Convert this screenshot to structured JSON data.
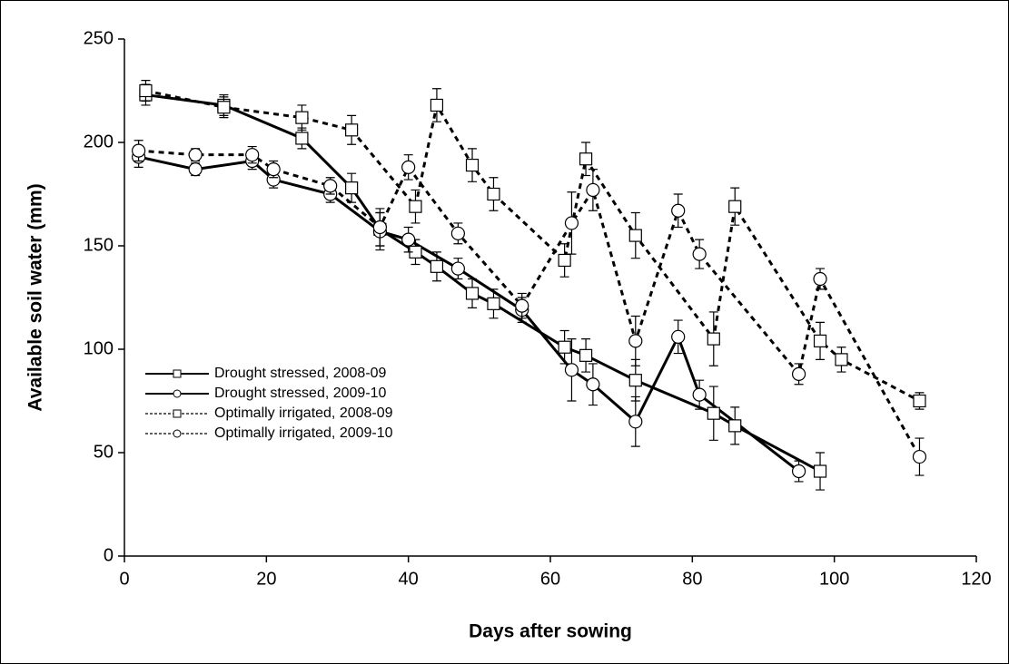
{
  "chart_data": {
    "type": "line",
    "x_label": "Days after sowing",
    "y_label": "Available soil water (mm)",
    "xlim": [
      0,
      120
    ],
    "xticks": [
      0,
      20,
      40,
      60,
      80,
      100,
      120
    ],
    "ylim": [
      0,
      250
    ],
    "yticks": [
      0,
      50,
      100,
      150,
      200,
      250
    ],
    "legend": "lower left",
    "series": [
      {
        "name": "Drought stressed, 2008-09",
        "color": "#000000",
        "line_style": "solid",
        "marker": "square",
        "x": [
          3,
          14,
          25,
          32,
          36,
          41,
          44,
          49,
          52,
          62,
          65,
          72,
          83,
          86,
          98
        ],
        "values": [
          223,
          218,
          202,
          178,
          158,
          147,
          140,
          127,
          122,
          101,
          97,
          85,
          69,
          63,
          41
        ],
        "errors": [
          5,
          5,
          5,
          7,
          8,
          6,
          7,
          7,
          7,
          8,
          8,
          10,
          13,
          9,
          9
        ]
      },
      {
        "name": "Drought stressed, 2009-10",
        "color": "#000000",
        "line_style": "solid",
        "marker": "circle",
        "x": [
          2,
          10,
          18,
          21,
          29,
          36,
          40,
          47,
          56,
          63,
          66,
          72,
          78,
          81,
          95
        ],
        "values": [
          193,
          187,
          191,
          182,
          175,
          157,
          153,
          139,
          119,
          90,
          83,
          65,
          106,
          78,
          41
        ],
        "errors": [
          5,
          3,
          4,
          4,
          4,
          9,
          6,
          5,
          6,
          15,
          10,
          12,
          8,
          7,
          5
        ]
      },
      {
        "name": "Optimally irrigated, 2008-09",
        "color": "#000000",
        "line_style": "dashed",
        "marker": "square",
        "x": [
          3,
          14,
          25,
          32,
          41,
          44,
          49,
          52,
          62,
          65,
          72,
          83,
          86,
          98,
          101,
          112
        ],
        "values": [
          225,
          217,
          212,
          206,
          169,
          218,
          189,
          175,
          143,
          192,
          155,
          105,
          169,
          104,
          95,
          75
        ],
        "errors": [
          5,
          5,
          6,
          7,
          8,
          8,
          8,
          8,
          8,
          8,
          11,
          13,
          9,
          9,
          6,
          4
        ]
      },
      {
        "name": "Optimally irrigated, 2009-10",
        "color": "#000000",
        "line_style": "dashed",
        "marker": "circle",
        "x": [
          2,
          10,
          18,
          21,
          29,
          36,
          40,
          47,
          56,
          63,
          66,
          72,
          78,
          81,
          95,
          98,
          112
        ],
        "values": [
          196,
          194,
          194,
          187,
          179,
          159,
          188,
          156,
          121,
          161,
          177,
          104,
          167,
          146,
          88,
          134,
          48
        ],
        "errors": [
          5,
          3,
          4,
          4,
          4,
          9,
          6,
          5,
          6,
          15,
          10,
          12,
          8,
          7,
          5,
          5,
          9
        ]
      }
    ]
  }
}
